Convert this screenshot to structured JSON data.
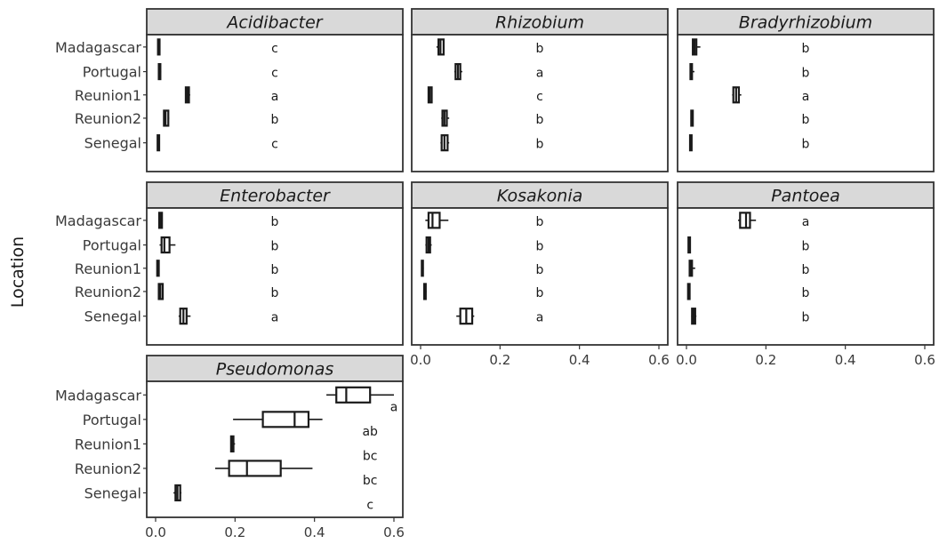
{
  "chart_data": {
    "type": "boxplot",
    "ylabel": "Location",
    "categories": [
      "Madagascar",
      "Portugal",
      "Reunion1",
      "Reunion2",
      "Senegal"
    ],
    "xlim": [
      0,
      0.6
    ],
    "xticks": [
      0.0,
      0.2,
      0.4,
      0.6
    ],
    "xtick_labels": [
      "0.0",
      "0.2",
      "0.4",
      "0.6"
    ],
    "grid": false,
    "panels": [
      {
        "title": "Acidibacter",
        "boxes": [
          {
            "category": "Madagascar",
            "min": 0.005,
            "q1": 0.006,
            "median": 0.008,
            "q3": 0.01,
            "max": 0.012,
            "letter": "c"
          },
          {
            "category": "Portugal",
            "min": 0.007,
            "q1": 0.008,
            "median": 0.01,
            "q3": 0.012,
            "max": 0.014,
            "letter": "c"
          },
          {
            "category": "Reunion1",
            "min": 0.074,
            "q1": 0.076,
            "median": 0.08,
            "q3": 0.084,
            "max": 0.087,
            "letter": "a"
          },
          {
            "category": "Reunion2",
            "min": 0.019,
            "q1": 0.021,
            "median": 0.025,
            "q3": 0.032,
            "max": 0.034,
            "letter": "b"
          },
          {
            "category": "Senegal",
            "min": 0.004,
            "q1": 0.005,
            "median": 0.007,
            "q3": 0.009,
            "max": 0.011,
            "letter": "c"
          }
        ]
      },
      {
        "title": "Rhizobium",
        "boxes": [
          {
            "category": "Madagascar",
            "min": 0.04,
            "q1": 0.045,
            "median": 0.05,
            "q3": 0.058,
            "max": 0.06,
            "letter": "b"
          },
          {
            "category": "Portugal",
            "min": 0.085,
            "q1": 0.088,
            "median": 0.094,
            "q3": 0.1,
            "max": 0.105,
            "letter": "a"
          },
          {
            "category": "Reunion1",
            "min": 0.018,
            "q1": 0.02,
            "median": 0.023,
            "q3": 0.028,
            "max": 0.03,
            "letter": "c"
          },
          {
            "category": "Reunion2",
            "min": 0.052,
            "q1": 0.055,
            "median": 0.06,
            "q3": 0.066,
            "max": 0.072,
            "letter": "b"
          },
          {
            "category": "Senegal",
            "min": 0.05,
            "q1": 0.053,
            "median": 0.06,
            "q3": 0.068,
            "max": 0.072,
            "letter": "b"
          }
        ]
      },
      {
        "title": "Bradyrhizobium",
        "boxes": [
          {
            "category": "Madagascar",
            "min": 0.014,
            "q1": 0.016,
            "median": 0.02,
            "q3": 0.025,
            "max": 0.035,
            "letter": "b"
          },
          {
            "category": "Portugal",
            "min": 0.008,
            "q1": 0.01,
            "median": 0.012,
            "q3": 0.014,
            "max": 0.02,
            "letter": "b"
          },
          {
            "category": "Reunion1",
            "min": 0.115,
            "q1": 0.118,
            "median": 0.125,
            "q3": 0.132,
            "max": 0.138,
            "letter": "a"
          },
          {
            "category": "Reunion2",
            "min": 0.01,
            "q1": 0.012,
            "median": 0.014,
            "q3": 0.016,
            "max": 0.017,
            "letter": "b"
          },
          {
            "category": "Senegal",
            "min": 0.008,
            "q1": 0.009,
            "median": 0.011,
            "q3": 0.013,
            "max": 0.014,
            "letter": "b"
          }
        ]
      },
      {
        "title": "Enterobacter",
        "boxes": [
          {
            "category": "Madagascar",
            "min": 0.007,
            "q1": 0.009,
            "median": 0.012,
            "q3": 0.016,
            "max": 0.018,
            "letter": "b"
          },
          {
            "category": "Portugal",
            "min": 0.01,
            "q1": 0.015,
            "median": 0.022,
            "q3": 0.035,
            "max": 0.05,
            "letter": "b"
          },
          {
            "category": "Reunion1",
            "min": 0.003,
            "q1": 0.004,
            "median": 0.006,
            "q3": 0.008,
            "max": 0.009,
            "letter": "b"
          },
          {
            "category": "Reunion2",
            "min": 0.007,
            "q1": 0.008,
            "median": 0.012,
            "q3": 0.018,
            "max": 0.02,
            "letter": "b"
          },
          {
            "category": "Senegal",
            "min": 0.058,
            "q1": 0.062,
            "median": 0.07,
            "q3": 0.078,
            "max": 0.088,
            "letter": "a"
          }
        ]
      },
      {
        "title": "Kosakonia",
        "boxes": [
          {
            "category": "Madagascar",
            "min": 0.012,
            "q1": 0.02,
            "median": 0.03,
            "q3": 0.048,
            "max": 0.07,
            "letter": "b"
          },
          {
            "category": "Portugal",
            "min": 0.012,
            "q1": 0.015,
            "median": 0.02,
            "q3": 0.024,
            "max": 0.028,
            "letter": "b"
          },
          {
            "category": "Reunion1",
            "min": 0.002,
            "q1": 0.003,
            "median": 0.005,
            "q3": 0.006,
            "max": 0.008,
            "letter": "b"
          },
          {
            "category": "Reunion2",
            "min": 0.008,
            "q1": 0.009,
            "median": 0.011,
            "q3": 0.013,
            "max": 0.015,
            "letter": "b"
          },
          {
            "category": "Senegal",
            "min": 0.09,
            "q1": 0.1,
            "median": 0.115,
            "q3": 0.13,
            "max": 0.135,
            "letter": "a"
          }
        ]
      },
      {
        "title": "Pantoea",
        "boxes": [
          {
            "category": "Madagascar",
            "min": 0.13,
            "q1": 0.135,
            "median": 0.15,
            "q3": 0.16,
            "max": 0.175,
            "letter": "a"
          },
          {
            "category": "Portugal",
            "min": 0.004,
            "q1": 0.005,
            "median": 0.007,
            "q3": 0.009,
            "max": 0.01,
            "letter": "b"
          },
          {
            "category": "Reunion1",
            "min": 0.006,
            "q1": 0.008,
            "median": 0.011,
            "q3": 0.014,
            "max": 0.022,
            "letter": "b"
          },
          {
            "category": "Reunion2",
            "min": 0.003,
            "q1": 0.004,
            "median": 0.006,
            "q3": 0.008,
            "max": 0.009,
            "letter": "b"
          },
          {
            "category": "Senegal",
            "min": 0.012,
            "q1": 0.014,
            "median": 0.018,
            "q3": 0.022,
            "max": 0.025,
            "letter": "b"
          }
        ]
      },
      {
        "title": "Pseudomonas",
        "boxes": [
          {
            "category": "Madagascar",
            "min": 0.43,
            "q1": 0.455,
            "median": 0.48,
            "q3": 0.54,
            "max": 0.6,
            "letter": "a"
          },
          {
            "category": "Portugal",
            "min": 0.195,
            "q1": 0.27,
            "median": 0.35,
            "q3": 0.385,
            "max": 0.42,
            "letter": "ab"
          },
          {
            "category": "Reunion1",
            "min": 0.188,
            "q1": 0.19,
            "median": 0.193,
            "q3": 0.196,
            "max": 0.2,
            "letter": "bc"
          },
          {
            "category": "Reunion2",
            "min": 0.15,
            "q1": 0.185,
            "median": 0.23,
            "q3": 0.315,
            "max": 0.395,
            "letter": "bc"
          },
          {
            "category": "Senegal",
            "min": 0.045,
            "q1": 0.05,
            "median": 0.055,
            "q3": 0.062,
            "max": 0.065,
            "letter": "c"
          }
        ]
      }
    ]
  }
}
